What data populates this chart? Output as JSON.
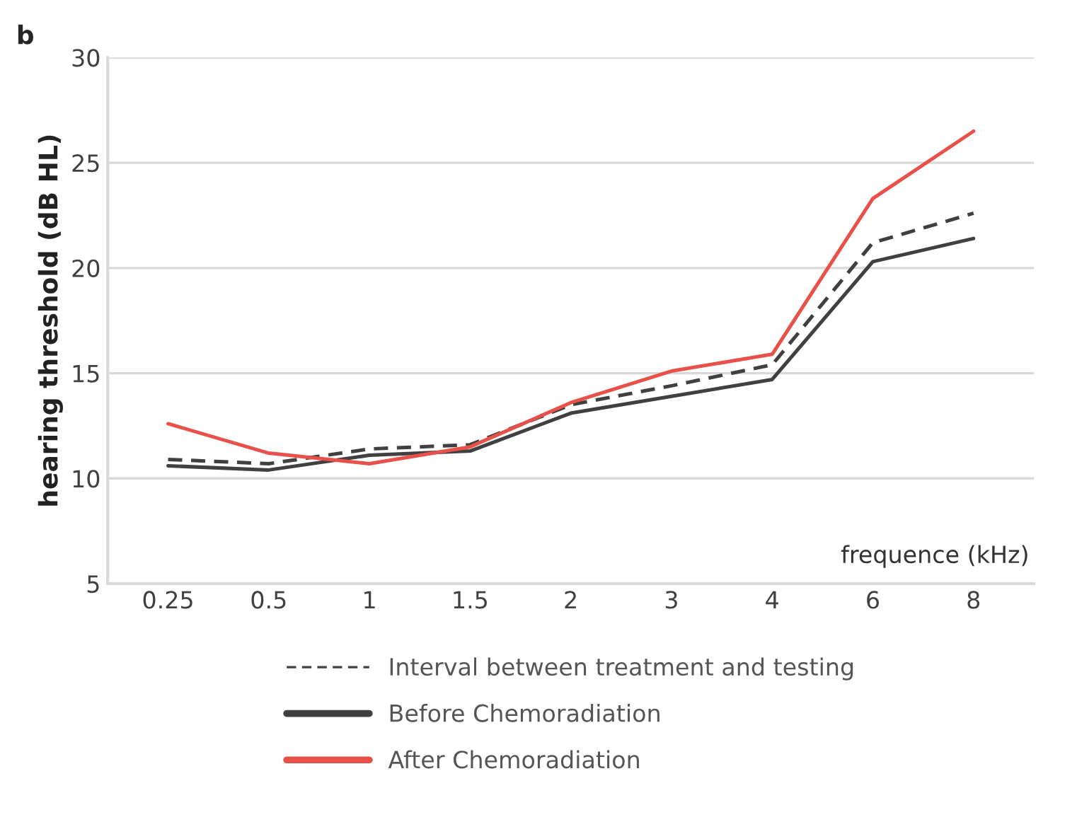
{
  "chart_data": {
    "type": "line",
    "ylabel": "hearing threshold (dB HL)",
    "xlabel": "frequence (kHz)",
    "annotations": [
      "b"
    ],
    "categories": [
      "0.25",
      "0.5",
      "1",
      "1.5",
      "2",
      "3",
      "4",
      "6",
      "8"
    ],
    "series": [
      {
        "name": "Interval between treatment and testing",
        "color": "#404040",
        "line_style": "dashed",
        "values": [
          10.9,
          10.7,
          11.4,
          11.6,
          13.5,
          14.4,
          15.4,
          21.2,
          22.6
        ]
      },
      {
        "name": "Before Chemoradiation",
        "color": "#404040",
        "line_style": "solid",
        "values": [
          10.6,
          10.4,
          11.1,
          11.3,
          13.1,
          13.9,
          14.7,
          20.3,
          21.4
        ]
      },
      {
        "name": "After Chemoradiation",
        "color": "#e8504a",
        "line_style": "solid",
        "values": [
          12.6,
          11.2,
          10.7,
          11.5,
          13.6,
          15.1,
          15.9,
          23.3,
          26.5
        ]
      }
    ],
    "ylim": [
      5,
      30
    ],
    "yticks": [
      5,
      10,
      15,
      20,
      25,
      30
    ],
    "grid": "y",
    "legend": "bottom",
    "marker": "none"
  }
}
